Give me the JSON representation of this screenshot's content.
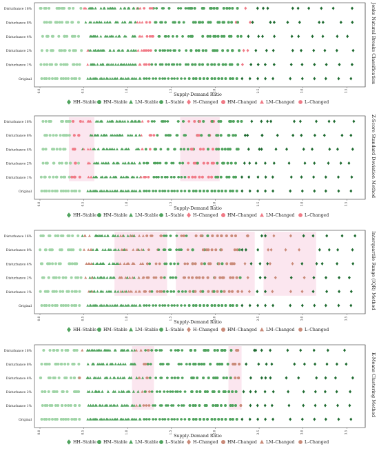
{
  "chart_data": [
    {
      "type": "scatter",
      "method_label": "Jenks Natural Breaks Classification",
      "xlabel": "Supply-Demand Ratio",
      "y_categories": [
        "Original",
        "Disturbance 1%",
        "Disturbance 2%",
        "Disturbance 4%",
        "Disturbance 8%",
        "Disturbance 16%"
      ],
      "xlim": [
        0.0,
        3.6
      ],
      "xticks": [
        0.0,
        0.5,
        1.0,
        1.5,
        2.0,
        2.5,
        3.0,
        3.5
      ],
      "changed_ranges": [
        [
          0.5,
          0.55
        ],
        [
          1.1,
          1.3
        ],
        [
          2.2,
          2.25
        ],
        [
          2.3,
          2.4
        ]
      ],
      "highlight_bands": []
    },
    {
      "type": "scatter",
      "method_label": "Z-Score Standard Deviation Method",
      "xlabel": "Supply-Demand Ratio",
      "y_categories": [
        "Original",
        "Disturbance 1%",
        "Disturbance 2%",
        "Disturbance 4%",
        "Disturbance 8%",
        "Disturbance 16%"
      ],
      "xlim": [
        0.0,
        3.6
      ],
      "xticks": [
        0.0,
        0.5,
        1.0,
        1.5,
        2.0,
        2.5,
        3.0,
        3.5
      ],
      "changed_ranges": [
        [
          0.35,
          0.6
        ],
        [
          1.15,
          1.3
        ],
        [
          1.65,
          2.0
        ]
      ],
      "highlight_bands": [
        [
          0.33,
          0.62
        ],
        [
          1.6,
          2.05
        ]
      ]
    },
    {
      "type": "scatter",
      "method_label": "Interquartile Range (IQR) Method",
      "xlabel": "Supply-Demand Ratio",
      "y_categories": [
        "Original",
        "Disturbance 1%",
        "Disturbance 2%",
        "Disturbance 4%",
        "Disturbance 8%",
        "Disturbance 16%"
      ],
      "xlim": [
        0.0,
        3.6
      ],
      "xticks": [
        0.0,
        0.5,
        1.0,
        1.5,
        2.0,
        2.5,
        3.0,
        3.5
      ],
      "changed_ranges": [
        [
          0.5,
          0.6
        ],
        [
          0.9,
          1.4
        ],
        [
          1.6,
          2.4
        ],
        [
          2.6,
          3.1
        ]
      ],
      "highlight_bands": [
        [
          0.85,
          1.45
        ],
        [
          1.55,
          2.45
        ],
        [
          2.55,
          3.15
        ]
      ]
    },
    {
      "type": "scatter",
      "method_label": "K-Means Clustering Method",
      "xlabel": "Supply-Demand Ratio",
      "y_categories": [
        "Original",
        "Disturbance 1%",
        "Disturbance 2%",
        "Disturbance 4%",
        "Disturbance 8%",
        "Disturbance 16%"
      ],
      "xlim": [
        0.0,
        3.6
      ],
      "xticks": [
        0.0,
        0.5,
        1.0,
        1.5,
        2.0,
        2.5,
        3.0,
        3.5
      ],
      "changed_ranges": [
        [
          0.45,
          0.5
        ],
        [
          1.1,
          1.25
        ],
        [
          2.2,
          2.3
        ]
      ],
      "highlight_bands": [
        [
          1.05,
          1.3
        ],
        [
          2.15,
          2.3
        ]
      ]
    }
  ],
  "legend_items": [
    {
      "label": "HH–Stable",
      "shape": "diamond",
      "status": "stable"
    },
    {
      "label": "HM–Stable",
      "shape": "circle",
      "status": "stable"
    },
    {
      "label": "LM–Stable",
      "shape": "triangle",
      "status": "stable"
    },
    {
      "label": "L–Stable",
      "shape": "octagon",
      "status": "stable"
    },
    {
      "label": "H–Changed",
      "shape": "diamond",
      "status": "changed"
    },
    {
      "label": "HM–Changed",
      "shape": "circle",
      "status": "changed"
    },
    {
      "label": "LM–Changed",
      "shape": "triangle",
      "status": "changed"
    },
    {
      "label": "L–Changed",
      "shape": "octagon",
      "status": "changed"
    }
  ],
  "colors": {
    "stable_light": "#9fd4a6",
    "stable_mid": "#4fa35d",
    "stable_dark": "#1e6b30",
    "changed_panel_default": "#f07a86",
    "changed_panel_4": "#c98a78",
    "band": "#fbe6ef"
  }
}
